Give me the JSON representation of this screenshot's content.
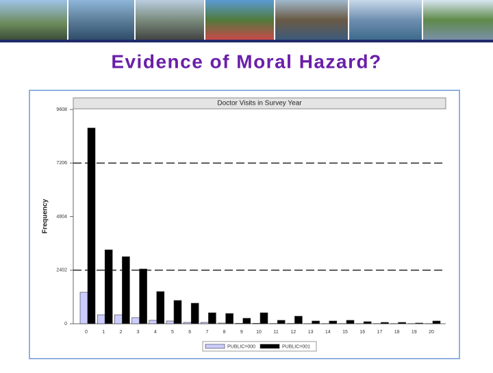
{
  "slide_title": "Evidence of Moral Hazard?",
  "chart_data": {
    "type": "bar",
    "title": "Doctor Visits in Survey Year",
    "y_label": "Frequency",
    "categories": [
      "0",
      "1",
      "2",
      "3",
      "4",
      "5",
      "6",
      "7",
      "8",
      "9",
      "10",
      "11",
      "12",
      "13",
      "14",
      "15",
      "16",
      "17",
      "18",
      "19",
      "20"
    ],
    "series": [
      {
        "name": "PUBLIC=000",
        "color": "#ccccff",
        "values": [
          1412,
          399,
          399,
          276,
          154,
          123,
          61,
          61,
          31,
          20,
          20,
          10,
          15,
          8,
          8,
          8,
          8,
          8,
          8,
          8,
          8
        ]
      },
      {
        "name": "PUBLIC=001",
        "color": "#000000",
        "values": [
          8780,
          3315,
          3008,
          2456,
          1443,
          1044,
          921,
          491,
          460,
          246,
          491,
          154,
          338,
          123,
          123,
          154,
          92,
          61,
          61,
          31,
          123
        ]
      }
    ],
    "ylim": [
      0,
      9608
    ],
    "yticks": [
      0,
      2402,
      4804,
      7206,
      9608
    ],
    "grid_lines": [
      2402,
      7206
    ]
  }
}
